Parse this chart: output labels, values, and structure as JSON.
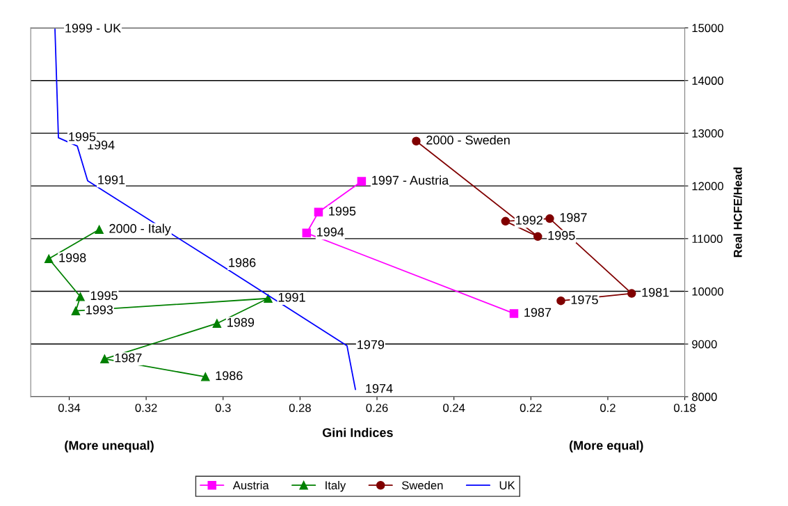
{
  "chart_data": {
    "type": "line",
    "xlabel": "Gini Indices",
    "ylabel": "Real HCFE/Head",
    "xlim": [
      0.35,
      0.18
    ],
    "xticks": [
      0.34,
      0.32,
      0.3,
      0.28,
      0.26,
      0.24,
      0.22,
      0.2,
      0.18
    ],
    "ylim": [
      8000,
      15000
    ],
    "yticks": [
      8000,
      9000,
      10000,
      11000,
      12000,
      13000,
      14000,
      15000
    ],
    "grid": "y",
    "legend": "bottom",
    "line_style": "solid",
    "series": [
      {
        "name": "Austria",
        "color": "#ff00ff",
        "marker": "square",
        "x": [
          0.2244,
          0.2783,
          0.2752,
          0.264
        ],
        "values": [
          9579,
          11106,
          11502,
          12087
        ]
      },
      {
        "name": "Italy",
        "color": "#008000",
        "marker": "triangle",
        "x": [
          0.3046,
          0.3308,
          0.3016,
          0.2883,
          0.3383,
          0.3371,
          0.3453,
          0.3322
        ],
        "values": [
          8379,
          8717,
          9390,
          9865,
          9628,
          9898,
          10618,
          11172
        ]
      },
      {
        "name": "Sweden",
        "color": "#800000",
        "marker": "circle",
        "x": [
          0.2122,
          0.1938,
          0.2151,
          0.2266,
          0.2182,
          0.2498
        ],
        "values": [
          9820,
          9960,
          11380,
          11330,
          11040,
          12850
        ]
      },
      {
        "name": "UK",
        "color": "#0000ff",
        "marker": "none",
        "x": [
          0.2656,
          0.2678,
          0.3012,
          0.3352,
          0.3379,
          0.3428,
          0.3437
        ],
        "values": [
          8136,
          8968,
          10525,
          12096,
          12756,
          12914,
          14974
        ]
      }
    ],
    "annotations": [
      {
        "text": "1987",
        "x": 0.2244,
        "y": 9579
      },
      {
        "text": "1994",
        "x": 0.2783,
        "y": 11106
      },
      {
        "text": "1995",
        "x": 0.2752,
        "y": 11502
      },
      {
        "text": "1997 - Austria",
        "x": 0.264,
        "y": 12087
      },
      {
        "text": "1986",
        "x": 0.3046,
        "y": 8379
      },
      {
        "text": "1987",
        "x": 0.3308,
        "y": 8717
      },
      {
        "text": "1989",
        "x": 0.3016,
        "y": 9390
      },
      {
        "text": "1991",
        "x": 0.2883,
        "y": 9865
      },
      {
        "text": "1993",
        "x": 0.3383,
        "y": 9628
      },
      {
        "text": "1995",
        "x": 0.3371,
        "y": 9898
      },
      {
        "text": "1998",
        "x": 0.3453,
        "y": 10618
      },
      {
        "text": "2000 - Italy",
        "x": 0.3322,
        "y": 11172
      },
      {
        "text": "1975",
        "x": 0.2122,
        "y": 9820
      },
      {
        "text": "1981",
        "x": 0.1938,
        "y": 9960
      },
      {
        "text": "1987",
        "x": 0.2151,
        "y": 11380
      },
      {
        "text": "1992",
        "x": 0.2266,
        "y": 11330
      },
      {
        "text": "1995",
        "x": 0.2182,
        "y": 11040
      },
      {
        "text": "2000 - Sweden",
        "x": 0.2498,
        "y": 12850
      },
      {
        "text": "1974",
        "x": 0.2656,
        "y": 8136
      },
      {
        "text": "1979",
        "x": 0.2678,
        "y": 8968
      },
      {
        "text": "1986",
        "x": 0.3012,
        "y": 10525
      },
      {
        "text": "1991",
        "x": 0.3352,
        "y": 12096
      },
      {
        "text": "1994",
        "x": 0.3379,
        "y": 12756
      },
      {
        "text": "1995",
        "x": 0.3428,
        "y": 12914
      },
      {
        "text": "1999 - UK",
        "x": 0.3437,
        "y": 14974
      },
      "(More unequal)",
      "(More equal)"
    ]
  }
}
